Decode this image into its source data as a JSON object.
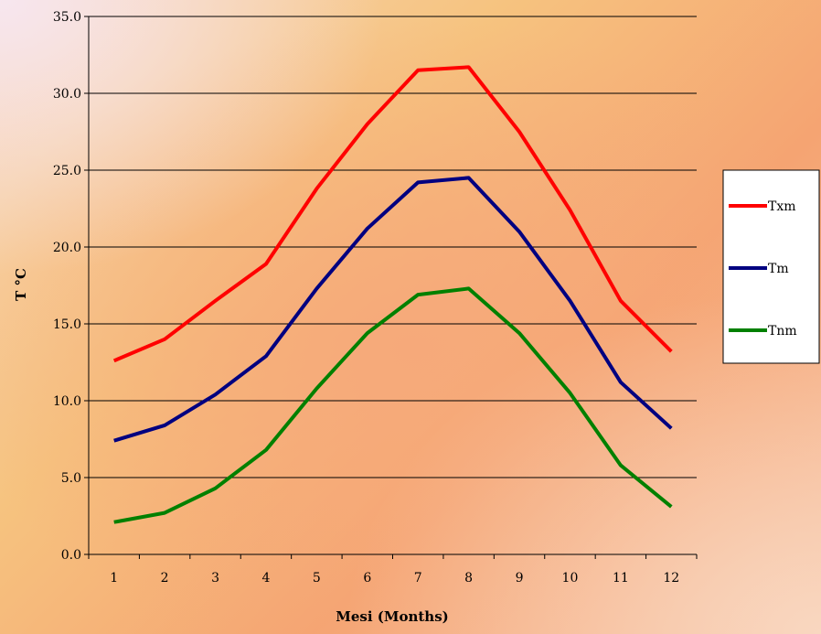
{
  "chart_data": {
    "type": "line",
    "title": "",
    "xlabel": "Mesi  (Months)",
    "ylabel": "T °C",
    "categories": [
      "1",
      "2",
      "3",
      "4",
      "5",
      "6",
      "7",
      "8",
      "9",
      "10",
      "11",
      "12"
    ],
    "y_tick_labels": [
      "0.0",
      "5.0",
      "10.0",
      "15.0",
      "20.0",
      "25.0",
      "30.0",
      "35.0"
    ],
    "ylim": [
      0,
      35
    ],
    "grid": "horizontal",
    "legend_position": "right",
    "series": [
      {
        "name": "Txm",
        "color": "#ff0000",
        "values": [
          12.6,
          14.0,
          16.5,
          18.9,
          23.8,
          28.0,
          31.5,
          31.7,
          27.5,
          22.4,
          16.5,
          13.2
        ]
      },
      {
        "name": "Tm",
        "color": "#000080",
        "values": [
          7.4,
          8.4,
          10.4,
          12.9,
          17.3,
          21.2,
          24.2,
          24.5,
          21.0,
          16.5,
          11.2,
          8.2
        ]
      },
      {
        "name": "Tnm",
        "color": "#008000",
        "values": [
          2.1,
          2.7,
          4.3,
          6.8,
          10.8,
          14.4,
          16.9,
          17.3,
          14.4,
          10.5,
          5.8,
          3.1
        ]
      }
    ]
  }
}
